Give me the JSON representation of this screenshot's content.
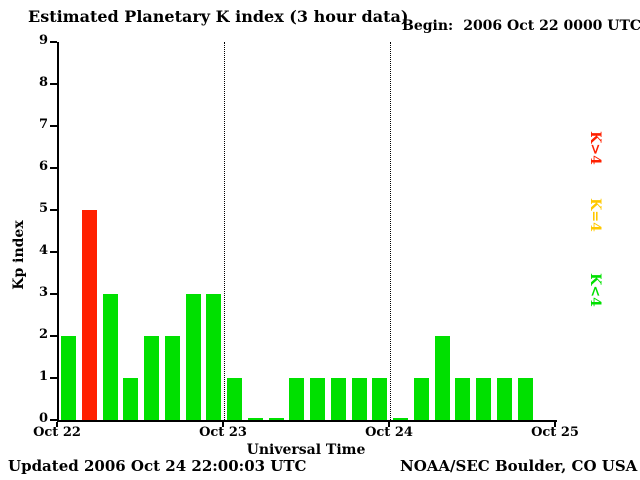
{
  "header": {
    "title": "Estimated Planetary K index (3 hour data)",
    "begin_label": "Begin:",
    "begin_value": "2006 Oct 22 0000 UTC"
  },
  "axes": {
    "ylabel": "Kp index",
    "xlabel": "Universal Time"
  },
  "legend": {
    "items": [
      {
        "label": "K>4",
        "color": "#FF2000",
        "position": "top"
      },
      {
        "label": "K=4",
        "color": "#FFC800",
        "position": "middle"
      },
      {
        "label": "K<4",
        "color": "#00E000",
        "position": "bottom"
      }
    ]
  },
  "footer": {
    "updated": "Updated 2006 Oct 24 22:00:03 UTC",
    "source": "NOAA/SEC Boulder, CO USA"
  },
  "chart_data": {
    "type": "bar",
    "title": "Estimated Planetary K index (3 hour data)",
    "begin": "2006 Oct 22 0000 UTC",
    "xlabel": "Universal Time",
    "ylabel": "Kp index",
    "ylim": [
      0,
      9
    ],
    "yticks": [
      0,
      1,
      2,
      3,
      4,
      5,
      6,
      7,
      8,
      9
    ],
    "x_day_labels": [
      "Oct 22",
      "Oct 23",
      "Oct 24",
      "Oct 25"
    ],
    "hours_per_bar": 3,
    "bars_per_day": 8,
    "days_shown": 3,
    "values": [
      2,
      5,
      3,
      1,
      2,
      2,
      3,
      3,
      1,
      0,
      0,
      1,
      1,
      1,
      1,
      1,
      0,
      1,
      2,
      1,
      1,
      1,
      1
    ],
    "bar_color_rule": {
      "below_4": "#00E000",
      "equal_4": "#FFC800",
      "above_4": "#FF2000"
    },
    "gridlines_at_days": [
      1,
      2
    ],
    "grid": "vertical dotted at day boundaries only",
    "legend_position": "right, rotated 90deg"
  }
}
